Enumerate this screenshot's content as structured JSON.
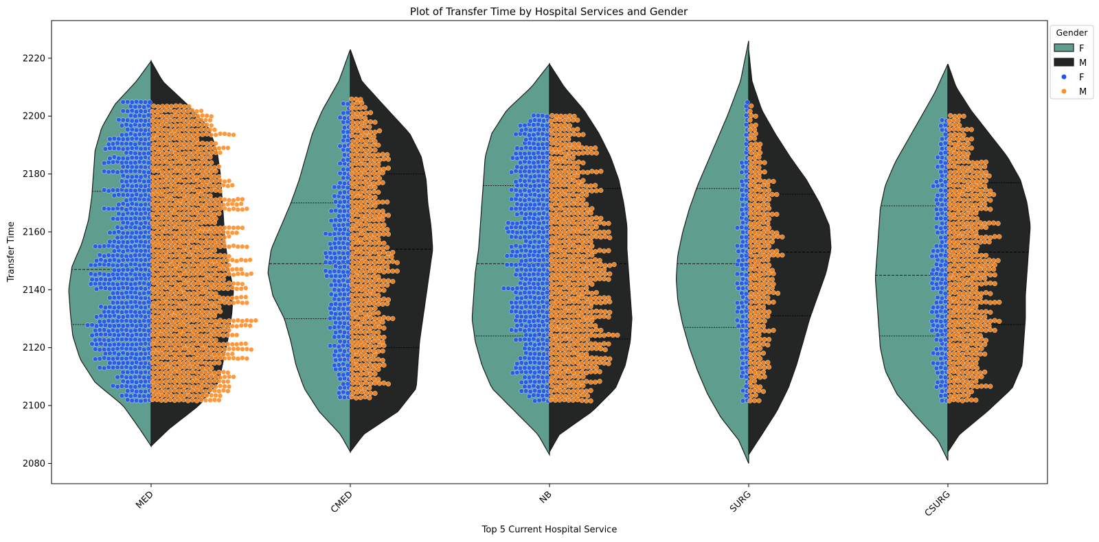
{
  "chart_data": {
    "type": "violin",
    "title": "Plot of Transfer Time by Hospital Services and Gender",
    "xlabel": "Top 5 Current Hospital Service",
    "ylabel": "Transfer Time",
    "categories": [
      "MED",
      "CMED",
      "NB",
      "SURG",
      "CSURG"
    ],
    "ylim": [
      2073,
      2233
    ],
    "yticks": [
      2080,
      2100,
      2120,
      2140,
      2160,
      2180,
      2200,
      2220
    ],
    "legend": {
      "title": "Gender",
      "position": "upper-right-outside",
      "entries": [
        {
          "label": "F",
          "kind": "violin",
          "color": "#5f9e8e"
        },
        {
          "label": "M",
          "kind": "violin",
          "color": "#232624"
        },
        {
          "label": "F",
          "kind": "point",
          "color": "#2255ee"
        },
        {
          "label": "M",
          "kind": "point",
          "color": "#ff8c26"
        }
      ]
    },
    "colors": {
      "violin_F": "#5f9e8e",
      "violin_M": "#232624",
      "points_F": "#2255ee",
      "points_M": "#ff8c26"
    },
    "violins": [
      {
        "category": "MED",
        "F": {
          "ymin": 2086,
          "ymax": 2219,
          "q1": 2128,
          "median": 2147,
          "q3": 2174,
          "profile": [
            [
              2086,
              0.0
            ],
            [
              2092,
              0.14
            ],
            [
              2100,
              0.34
            ],
            [
              2108,
              0.68
            ],
            [
              2116,
              0.86
            ],
            [
              2124,
              0.95
            ],
            [
              2132,
              0.98
            ],
            [
              2140,
              1.0
            ],
            [
              2148,
              0.96
            ],
            [
              2156,
              0.84
            ],
            [
              2164,
              0.76
            ],
            [
              2172,
              0.72
            ],
            [
              2180,
              0.7
            ],
            [
              2188,
              0.68
            ],
            [
              2196,
              0.6
            ],
            [
              2204,
              0.44
            ],
            [
              2212,
              0.18
            ],
            [
              2219,
              0.0
            ]
          ]
        },
        "M": {
          "ymin": 2086,
          "ymax": 2219,
          "q1": 2128,
          "median": 2144,
          "q3": 2180,
          "profile": [
            [
              2086,
              0.0
            ],
            [
              2092,
              0.22
            ],
            [
              2100,
              0.58
            ],
            [
              2108,
              0.82
            ],
            [
              2116,
              0.88
            ],
            [
              2124,
              0.94
            ],
            [
              2132,
              0.98
            ],
            [
              2140,
              1.0
            ],
            [
              2148,
              0.94
            ],
            [
              2156,
              0.9
            ],
            [
              2164,
              0.88
            ],
            [
              2172,
              0.86
            ],
            [
              2180,
              0.84
            ],
            [
              2188,
              0.8
            ],
            [
              2196,
              0.7
            ],
            [
              2204,
              0.44
            ],
            [
              2212,
              0.14
            ],
            [
              2219,
              0.0
            ]
          ]
        },
        "points_F": {
          "count": 620,
          "ymin": 2101,
          "ymax": 2205
        },
        "points_M": {
          "count": 1100,
          "ymin": 2101,
          "ymax": 2204
        }
      },
      {
        "category": "CMED",
        "F": {
          "ymin": 2084,
          "ymax": 2223,
          "q1": 2130,
          "median": 2149,
          "q3": 2170,
          "profile": [
            [
              2084,
              0.0
            ],
            [
              2090,
              0.12
            ],
            [
              2098,
              0.38
            ],
            [
              2106,
              0.56
            ],
            [
              2114,
              0.66
            ],
            [
              2122,
              0.72
            ],
            [
              2130,
              0.8
            ],
            [
              2138,
              0.94
            ],
            [
              2146,
              1.0
            ],
            [
              2154,
              0.96
            ],
            [
              2162,
              0.84
            ],
            [
              2170,
              0.72
            ],
            [
              2178,
              0.62
            ],
            [
              2186,
              0.54
            ],
            [
              2194,
              0.46
            ],
            [
              2202,
              0.34
            ],
            [
              2212,
              0.14
            ],
            [
              2223,
              0.0
            ]
          ]
        },
        "M": {
          "ymin": 2084,
          "ymax": 2223,
          "q1": 2120,
          "median": 2154,
          "q3": 2180,
          "profile": [
            [
              2084,
              0.0
            ],
            [
              2090,
              0.16
            ],
            [
              2098,
              0.58
            ],
            [
              2106,
              0.8
            ],
            [
              2114,
              0.82
            ],
            [
              2122,
              0.84
            ],
            [
              2130,
              0.88
            ],
            [
              2138,
              0.92
            ],
            [
              2146,
              0.96
            ],
            [
              2154,
              1.0
            ],
            [
              2162,
              0.98
            ],
            [
              2170,
              0.94
            ],
            [
              2178,
              0.92
            ],
            [
              2186,
              0.86
            ],
            [
              2194,
              0.72
            ],
            [
              2202,
              0.46
            ],
            [
              2212,
              0.14
            ],
            [
              2223,
              0.0
            ]
          ]
        },
        "points_F": {
          "count": 240,
          "ymin": 2102,
          "ymax": 2205
        },
        "points_M": {
          "count": 470,
          "ymin": 2102,
          "ymax": 2207
        }
      },
      {
        "category": "NB",
        "F": {
          "ymin": 2083,
          "ymax": 2218,
          "q1": 2124,
          "median": 2149,
          "q3": 2176,
          "profile": [
            [
              2083,
              0.0
            ],
            [
              2090,
              0.14
            ],
            [
              2098,
              0.42
            ],
            [
              2106,
              0.7
            ],
            [
              2114,
              0.82
            ],
            [
              2122,
              0.9
            ],
            [
              2130,
              0.94
            ],
            [
              2138,
              0.92
            ],
            [
              2146,
              0.9
            ],
            [
              2154,
              0.86
            ],
            [
              2162,
              0.84
            ],
            [
              2170,
              0.82
            ],
            [
              2178,
              0.8
            ],
            [
              2186,
              0.78
            ],
            [
              2194,
              0.7
            ],
            [
              2202,
              0.52
            ],
            [
              2210,
              0.22
            ],
            [
              2218,
              0.0
            ]
          ]
        },
        "M": {
          "ymin": 2084,
          "ymax": 2218,
          "q1": 2123,
          "median": 2149,
          "q3": 2175,
          "profile": [
            [
              2084,
              0.0
            ],
            [
              2090,
              0.12
            ],
            [
              2098,
              0.52
            ],
            [
              2106,
              0.8
            ],
            [
              2114,
              0.92
            ],
            [
              2122,
              0.98
            ],
            [
              2130,
              1.0
            ],
            [
              2138,
              0.98
            ],
            [
              2146,
              0.96
            ],
            [
              2154,
              0.94
            ],
            [
              2162,
              0.94
            ],
            [
              2170,
              0.9
            ],
            [
              2178,
              0.84
            ],
            [
              2186,
              0.74
            ],
            [
              2194,
              0.6
            ],
            [
              2202,
              0.42
            ],
            [
              2210,
              0.18
            ],
            [
              2218,
              0.0
            ]
          ]
        },
        "points_F": {
          "count": 470,
          "ymin": 2101,
          "ymax": 2201
        },
        "points_M": {
          "count": 650,
          "ymin": 2101,
          "ymax": 2201
        }
      },
      {
        "category": "SURG",
        "F": {
          "ymin": 2080,
          "ymax": 2226,
          "q1": 2127,
          "median": 2149,
          "q3": 2175,
          "profile": [
            [
              2080,
              0.0
            ],
            [
              2088,
              0.12
            ],
            [
              2096,
              0.34
            ],
            [
              2104,
              0.5
            ],
            [
              2112,
              0.62
            ],
            [
              2120,
              0.72
            ],
            [
              2128,
              0.8
            ],
            [
              2136,
              0.86
            ],
            [
              2144,
              0.88
            ],
            [
              2152,
              0.86
            ],
            [
              2160,
              0.8
            ],
            [
              2168,
              0.72
            ],
            [
              2176,
              0.62
            ],
            [
              2184,
              0.5
            ],
            [
              2192,
              0.38
            ],
            [
              2200,
              0.26
            ],
            [
              2212,
              0.1
            ],
            [
              2226,
              0.0
            ]
          ]
        },
        "M": {
          "ymin": 2083,
          "ymax": 2223,
          "q1": 2131,
          "median": 2153,
          "q3": 2173,
          "profile": [
            [
              2083,
              0.0
            ],
            [
              2090,
              0.16
            ],
            [
              2098,
              0.34
            ],
            [
              2106,
              0.48
            ],
            [
              2114,
              0.58
            ],
            [
              2122,
              0.66
            ],
            [
              2130,
              0.74
            ],
            [
              2138,
              0.84
            ],
            [
              2146,
              0.94
            ],
            [
              2154,
              1.0
            ],
            [
              2162,
              0.98
            ],
            [
              2170,
              0.86
            ],
            [
              2178,
              0.7
            ],
            [
              2186,
              0.5
            ],
            [
              2194,
              0.32
            ],
            [
              2202,
              0.16
            ],
            [
              2212,
              0.04
            ],
            [
              2223,
              0.0
            ]
          ]
        },
        "points_F": {
          "count": 130,
          "ymin": 2101,
          "ymax": 2205
        },
        "points_M": {
          "count": 290,
          "ymin": 2101,
          "ymax": 2204
        }
      },
      {
        "category": "CSURG",
        "F": {
          "ymin": 2081,
          "ymax": 2218,
          "q1": 2124,
          "median": 2145,
          "q3": 2169,
          "profile": [
            [
              2081,
              0.0
            ],
            [
              2088,
              0.12
            ],
            [
              2096,
              0.38
            ],
            [
              2104,
              0.62
            ],
            [
              2112,
              0.76
            ],
            [
              2120,
              0.82
            ],
            [
              2128,
              0.84
            ],
            [
              2136,
              0.86
            ],
            [
              2144,
              0.88
            ],
            [
              2152,
              0.86
            ],
            [
              2160,
              0.84
            ],
            [
              2168,
              0.82
            ],
            [
              2176,
              0.76
            ],
            [
              2184,
              0.64
            ],
            [
              2192,
              0.48
            ],
            [
              2200,
              0.32
            ],
            [
              2208,
              0.16
            ],
            [
              2218,
              0.0
            ]
          ]
        },
        "M": {
          "ymin": 2084,
          "ymax": 2218,
          "q1": 2128,
          "median": 2153,
          "q3": 2177,
          "profile": [
            [
              2084,
              0.0
            ],
            [
              2090,
              0.14
            ],
            [
              2098,
              0.48
            ],
            [
              2106,
              0.78
            ],
            [
              2114,
              0.9
            ],
            [
              2122,
              0.92
            ],
            [
              2130,
              0.94
            ],
            [
              2138,
              0.94
            ],
            [
              2146,
              0.96
            ],
            [
              2154,
              0.98
            ],
            [
              2162,
              1.0
            ],
            [
              2170,
              0.96
            ],
            [
              2178,
              0.88
            ],
            [
              2186,
              0.72
            ],
            [
              2194,
              0.5
            ],
            [
              2202,
              0.28
            ],
            [
              2210,
              0.1
            ],
            [
              2218,
              0.0
            ]
          ]
        },
        "points_F": {
          "count": 170,
          "ymin": 2101,
          "ymax": 2199
        },
        "points_M": {
          "count": 520,
          "ymin": 2101,
          "ymax": 2201
        }
      }
    ]
  }
}
